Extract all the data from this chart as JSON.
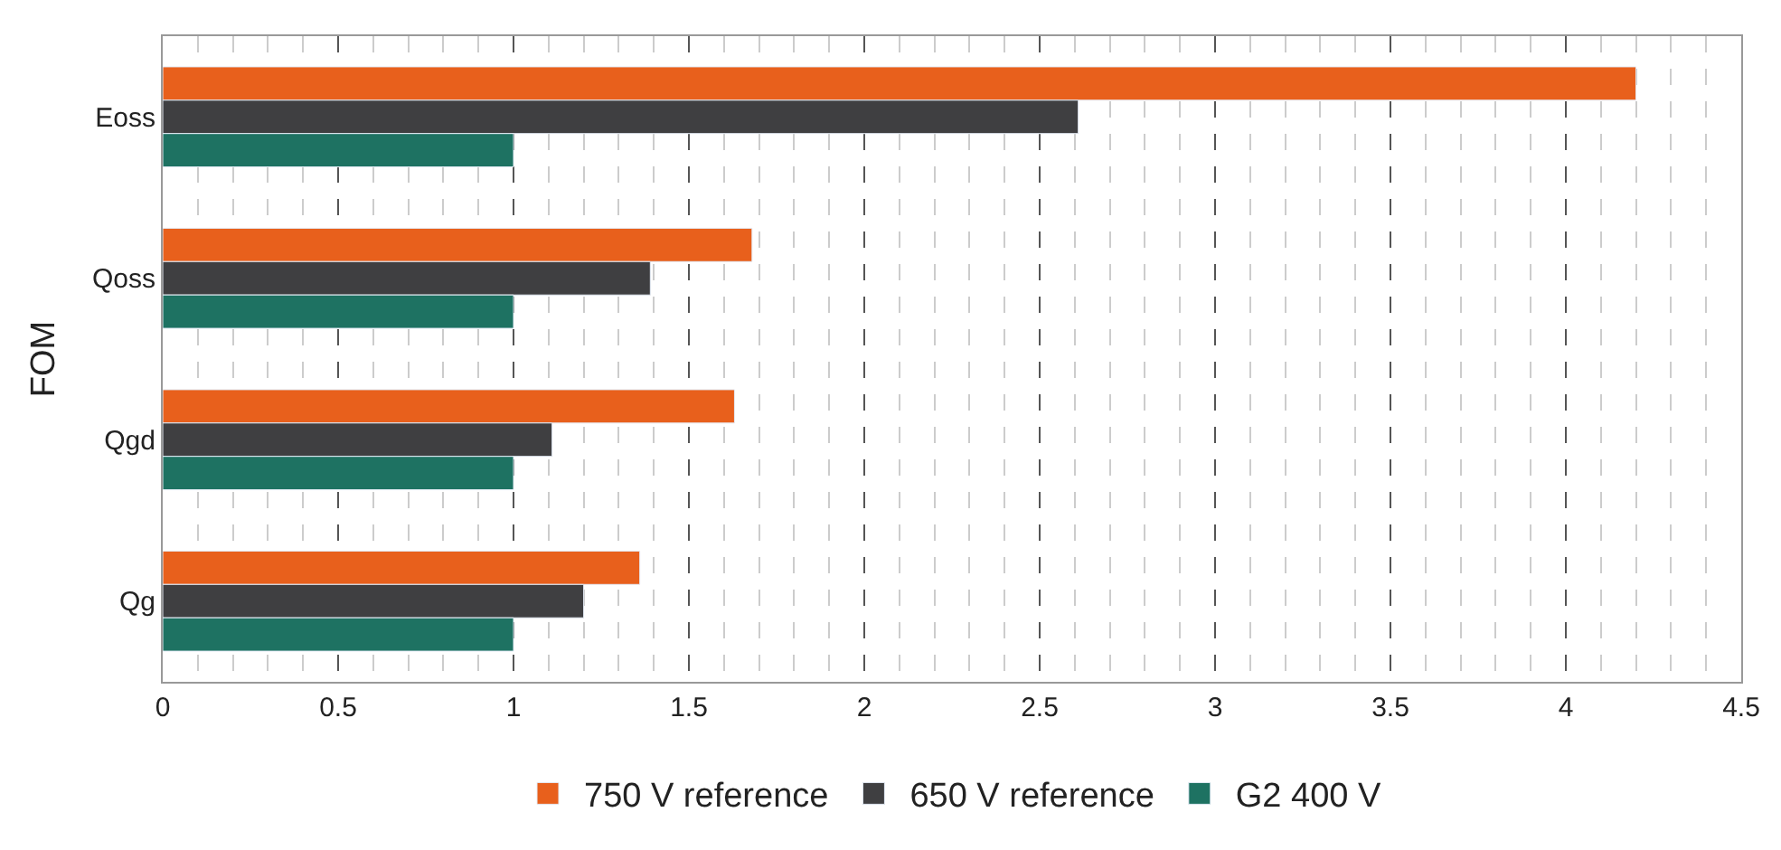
{
  "chart_data": {
    "type": "bar",
    "orientation": "horizontal",
    "ylabel": "FOM",
    "categories": [
      "Eoss",
      "Qoss",
      "Qgd",
      "Qg"
    ],
    "series": [
      {
        "name": "750 V reference",
        "color": "#e8601c",
        "values": [
          4.2,
          1.68,
          1.63,
          1.36
        ]
      },
      {
        "name": "650 V reference",
        "color": "#3f3f41",
        "values": [
          2.61,
          1.39,
          1.11,
          1.2
        ]
      },
      {
        "name": "G2 400 V",
        "color": "#1e7262",
        "values": [
          1,
          1,
          1,
          1
        ]
      }
    ],
    "xlim": [
      0,
      4.5
    ],
    "xticks": [
      0,
      0.5,
      1,
      1.5,
      2,
      2.5,
      3,
      3.5,
      4,
      4.5,
      {
        "value": 0.1,
        "label": null
      },
      {
        "value": 0.2,
        "label": null
      },
      {
        "value": 0.3,
        "label": null
      },
      {
        "value": 0.4,
        "label": null
      },
      {
        "value": 0.6,
        "label": null
      },
      {
        "value": 0.7,
        "label": null
      },
      {
        "value": 0.8,
        "label": null
      },
      {
        "value": 0.9,
        "label": null
      },
      {
        "value": 1.1,
        "label": null
      },
      {
        "value": 1.2,
        "label": null
      },
      {
        "value": 1.3,
        "label": null
      },
      {
        "value": 1.4,
        "label": null
      },
      {
        "value": 1.6,
        "label": null
      },
      {
        "value": 1.7,
        "label": null
      },
      {
        "value": 1.8,
        "label": null
      },
      {
        "value": 1.9,
        "label": null
      },
      {
        "value": 2.1,
        "label": null
      },
      {
        "value": 2.2,
        "label": null
      },
      {
        "value": 2.3,
        "label": null
      },
      {
        "value": 2.4,
        "label": null
      },
      {
        "value": 2.6,
        "label": null
      },
      {
        "value": 2.7,
        "label": null
      },
      {
        "value": 2.8,
        "label": null
      },
      {
        "value": 2.9,
        "label": null
      },
      {
        "value": 3.1,
        "label": null
      },
      {
        "value": 3.2,
        "label": null
      },
      {
        "value": 3.3,
        "label": null
      },
      {
        "value": 3.4,
        "label": null
      },
      {
        "value": 3.6,
        "label": null
      },
      {
        "value": 3.7,
        "label": null
      },
      {
        "value": 3.8,
        "label": null
      },
      {
        "value": 3.9,
        "label": null
      },
      {
        "value": 4.1,
        "label": null
      },
      {
        "value": 4.2,
        "label": null
      },
      {
        "value": 4.3,
        "label": null
      },
      {
        "value": 4.4,
        "label": null
      }
    ],
    "grid": "x",
    "legend": "bottom"
  }
}
